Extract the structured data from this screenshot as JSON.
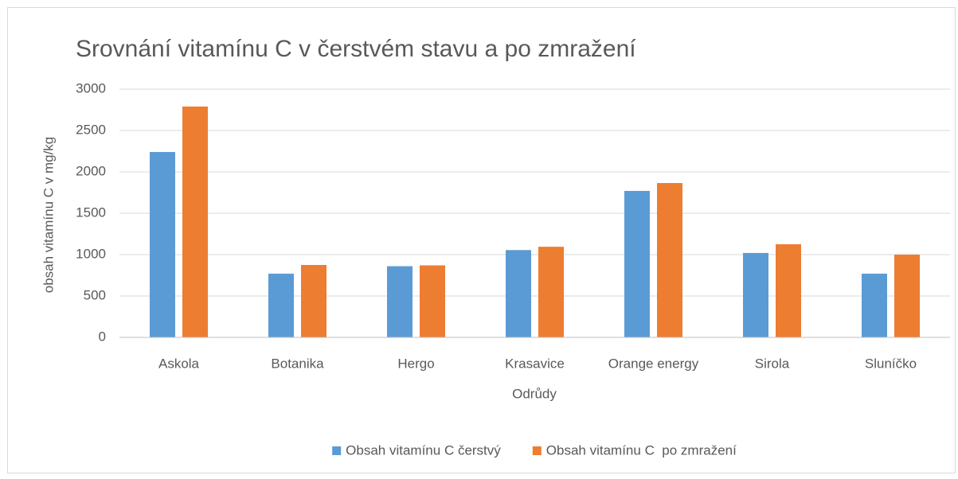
{
  "chart_data": {
    "type": "bar",
    "title": "Srovnání vitamínu C v čerstvém stavu a po zmražení",
    "x_label": "Odrůdy",
    "y_label": "obsah vitamínu C v mg/kg",
    "categories": [
      "Askola",
      "Botanika",
      "Hergo",
      "Krasavice",
      "Orange energy",
      "Sirola",
      "Sluníčko"
    ],
    "series": [
      {
        "name": "Obsah vitamínu C čerstvý",
        "color": "#5b9bd5",
        "values": [
          2240,
          770,
          860,
          1055,
          1770,
          1020,
          770
        ]
      },
      {
        "name": "Obsah vitamínu C  po zmražení",
        "color": "#ed7d31",
        "values": [
          2790,
          875,
          870,
          1095,
          1865,
          1125,
          1000
        ]
      }
    ],
    "ylim": [
      0,
      3000
    ],
    "yticks": [
      0,
      500,
      1000,
      1500,
      2000,
      2500,
      3000
    ],
    "grid": true,
    "legend": "bottom"
  }
}
